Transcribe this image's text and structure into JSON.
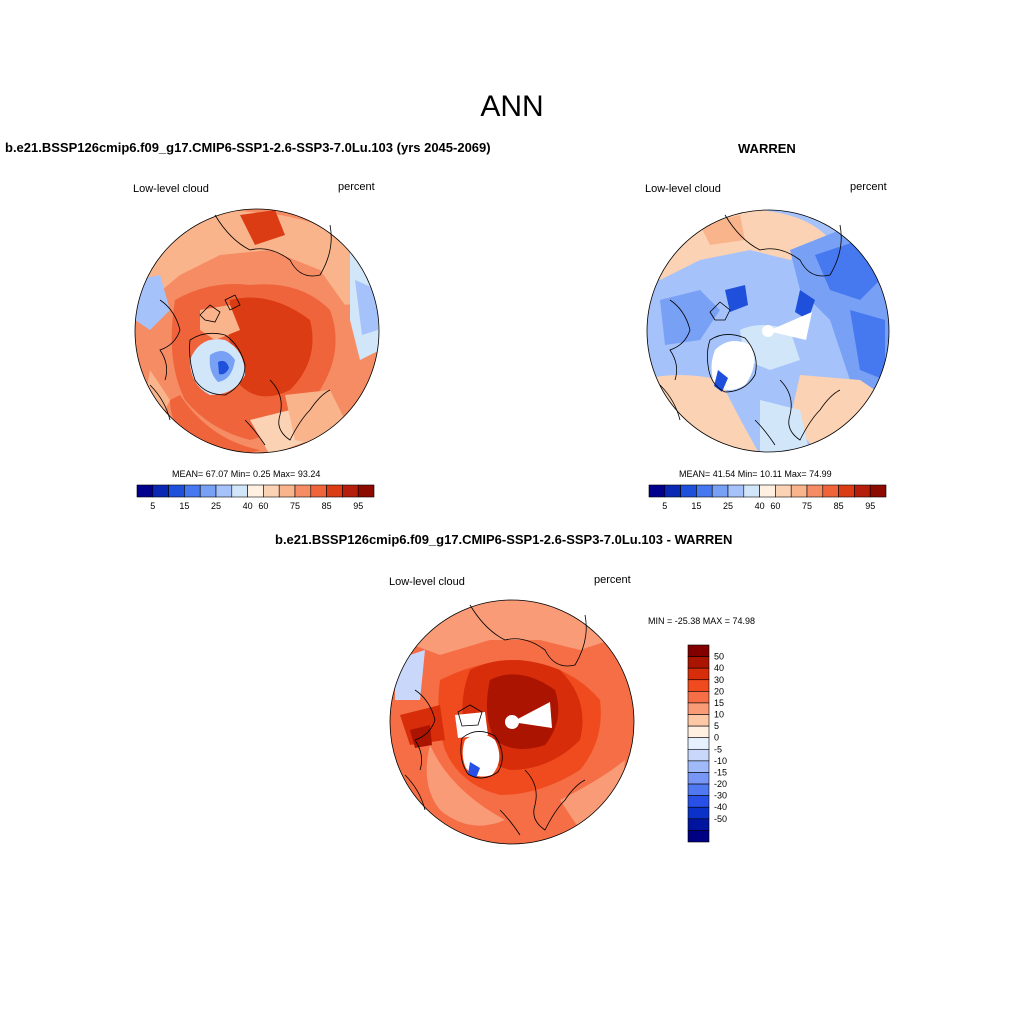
{
  "page": {
    "title": "ANN"
  },
  "colors": {
    "abs_scale": [
      "#00008c",
      "#0a28b4",
      "#1e50dc",
      "#4678f0",
      "#78a0f5",
      "#a5c3fa",
      "#d2e6fa",
      "#fff0e1",
      "#fcd2b4",
      "#fab48c",
      "#f58c64",
      "#f0643c",
      "#dc3c14",
      "#b41e0a",
      "#8c0a00"
    ],
    "diff_scale": [
      "#000082",
      "#0014a0",
      "#0a32c8",
      "#2850e6",
      "#5078f0",
      "#7896f5",
      "#a0b9f8",
      "#c8d7fa",
      "#e6f0ff",
      "#fff0e1",
      "#fcc8a5",
      "#fa9b78",
      "#f56e46",
      "#f04b1e",
      "#d72d0a",
      "#aa1400",
      "#820000"
    ],
    "coastline": "#000000"
  },
  "panels": {
    "left": {
      "title": "b.e21.BSSP126cmip6.f09_g17.CMIP6-SSP1-2.6-SSP3-7.0Lu.103 (yrs 2045-2069)",
      "variable": "Low-level cloud",
      "units": "percent",
      "stats": "MEAN=  67.07  Min=   0.25  Max=  93.24",
      "colorbar_labels": [
        "5",
        "15",
        "25",
        "40",
        "60",
        "75",
        "85",
        "95"
      ]
    },
    "right": {
      "title": "WARREN",
      "variable": "Low-level cloud",
      "units": "percent",
      "stats": "MEAN=  41.54  Min=  10.11  Max=  74.99",
      "colorbar_labels": [
        "5",
        "15",
        "25",
        "40",
        "60",
        "75",
        "85",
        "95"
      ]
    },
    "bottom": {
      "title": "b.e21.BSSP126cmip6.f09_g17.CMIP6-SSP1-2.6-SSP3-7.0Lu.103 - WARREN",
      "variable": "Low-level cloud",
      "units": "percent",
      "stats": "MIN = -25.38 MAX =  74.98",
      "colorbar_labels": [
        "50",
        "40",
        "30",
        "20",
        "15",
        "10",
        "5",
        "0",
        "-5",
        "-10",
        "-15",
        "-20",
        "-30",
        "-40",
        "-50"
      ]
    }
  }
}
